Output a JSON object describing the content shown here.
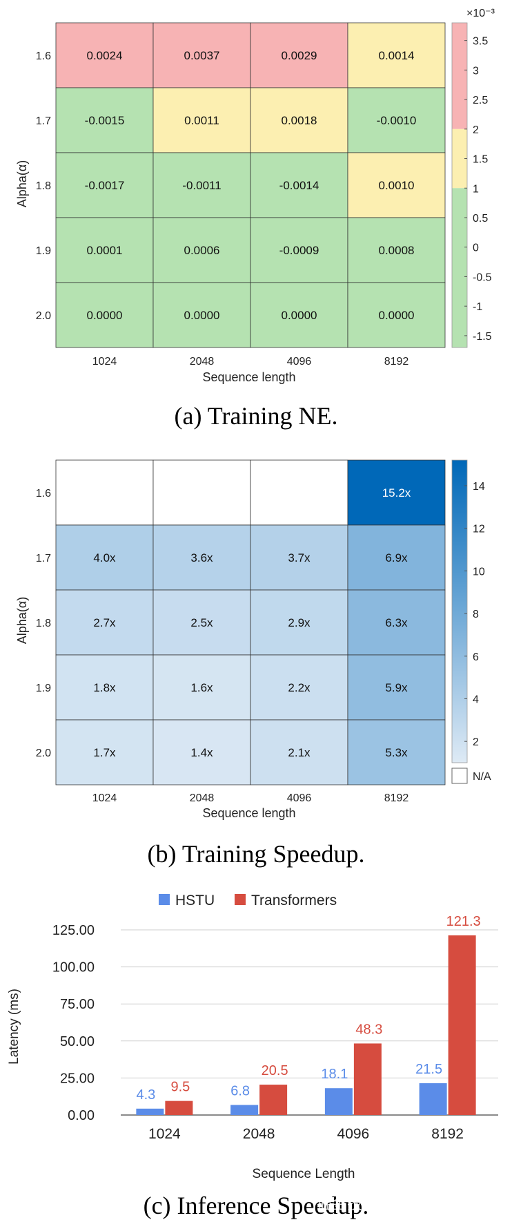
{
  "colors": {
    "red": "#f7b3b4",
    "yellow": "#fcefb1",
    "green": "#b5e2b1",
    "blue_dark": "#0068b8",
    "blue_light": "#deeaf5",
    "hstu": "#5b8ce8",
    "transformers": "#d64c3f",
    "grid_line": "#333333"
  },
  "chart_data": [
    {
      "type": "heatmap",
      "caption": "(a) Training NE.",
      "xlabel": "Sequence length",
      "ylabel": "Alpha(α)",
      "x": [
        "1024",
        "2048",
        "4096",
        "8192"
      ],
      "y": [
        "1.6",
        "1.7",
        "1.8",
        "1.9",
        "2.0"
      ],
      "values": [
        [
          0.0024,
          0.0037,
          0.0029,
          0.0014
        ],
        [
          -0.0015,
          0.0011,
          0.0018,
          -0.001
        ],
        [
          -0.0017,
          -0.0011,
          -0.0014,
          0.001
        ],
        [
          0.0001,
          0.0006,
          -0.0009,
          0.0008
        ],
        [
          0.0,
          0.0,
          0.0,
          0.0
        ]
      ],
      "labels": [
        [
          "0.0024",
          "0.0037",
          "0.0029",
          "0.0014"
        ],
        [
          "-0.0015",
          "0.0011",
          "0.0018",
          "-0.0010"
        ],
        [
          "-0.0017",
          "-0.0011",
          "-0.0014",
          "0.0010"
        ],
        [
          "0.0001",
          "0.0006",
          "-0.0009",
          "0.0008"
        ],
        [
          "0.0000",
          "0.0000",
          "0.0000",
          "0.0000"
        ]
      ],
      "colorbar": {
        "range": [
          -1.7,
          3.8
        ],
        "multiplier": "×10⁻³",
        "ticks": [
          3.5,
          3,
          2.5,
          2,
          1.5,
          1,
          0.5,
          0,
          -0.5,
          -1,
          -1.5
        ],
        "tick_labels": [
          "3.5",
          "3",
          "2.5",
          "2",
          "1.5",
          "1",
          "0.5",
          "0",
          "-0.5",
          "-1",
          "-1.5"
        ],
        "bands": [
          {
            "from": 2,
            "to": 3.8,
            "color": "#f7b3b4"
          },
          {
            "from": 1,
            "to": 2,
            "color": "#fcefb1"
          },
          {
            "from": -1.7,
            "to": 1,
            "color": "#b5e2b1"
          }
        ]
      }
    },
    {
      "type": "heatmap",
      "caption": "(b) Training Speedup.",
      "xlabel": "Sequence length",
      "ylabel": "Alpha(α)",
      "x": [
        "1024",
        "2048",
        "4096",
        "8192"
      ],
      "y": [
        "1.6",
        "1.7",
        "1.8",
        "1.9",
        "2.0"
      ],
      "values": [
        [
          null,
          null,
          null,
          15.2
        ],
        [
          4.0,
          3.6,
          3.7,
          6.9
        ],
        [
          2.7,
          2.5,
          2.9,
          6.3
        ],
        [
          1.8,
          1.6,
          2.2,
          5.9
        ],
        [
          1.7,
          1.4,
          2.1,
          5.3
        ]
      ],
      "labels": [
        [
          "",
          "",
          "",
          "15.2x"
        ],
        [
          "4.0x",
          "3.6x",
          "3.7x",
          "6.9x"
        ],
        [
          "2.7x",
          "2.5x",
          "2.9x",
          "6.3x"
        ],
        [
          "1.8x",
          "1.6x",
          "2.2x",
          "5.9x"
        ],
        [
          "1.7x",
          "1.4x",
          "2.1x",
          "5.3x"
        ]
      ],
      "colorbar": {
        "range": [
          1.0,
          15.2
        ],
        "ticks": [
          14,
          12,
          10,
          8,
          6,
          4,
          2
        ],
        "tick_labels": [
          "14",
          "12",
          "10",
          "8",
          "6",
          "4",
          "2"
        ],
        "na_label": "N/A"
      }
    },
    {
      "type": "bar",
      "caption": "(c) Inference Speedup.",
      "xlabel": "Sequence Length",
      "ylabel": "Latency (ms)",
      "categories": [
        "1024",
        "2048",
        "4096",
        "8192"
      ],
      "series": [
        {
          "name": "HSTU",
          "values": [
            4.3,
            6.8,
            18.1,
            21.5
          ],
          "labels": [
            "4.3",
            "6.8",
            "18.1",
            "21.5"
          ]
        },
        {
          "name": "Transformers",
          "values": [
            9.5,
            20.5,
            48.3,
            121.3
          ],
          "labels": [
            "9.5",
            "20.5",
            "48.3",
            "121.3"
          ]
        }
      ],
      "ylim": [
        0,
        125
      ],
      "yticks": [
        0,
        25,
        50,
        75,
        100,
        125
      ],
      "ytick_labels": [
        "0.00",
        "25.00",
        "50.00",
        "75.00",
        "100.00",
        "125.00"
      ],
      "legend": "top-center",
      "grid": true
    }
  ],
  "watermark": "掘金技术社区 @ 算法小强"
}
